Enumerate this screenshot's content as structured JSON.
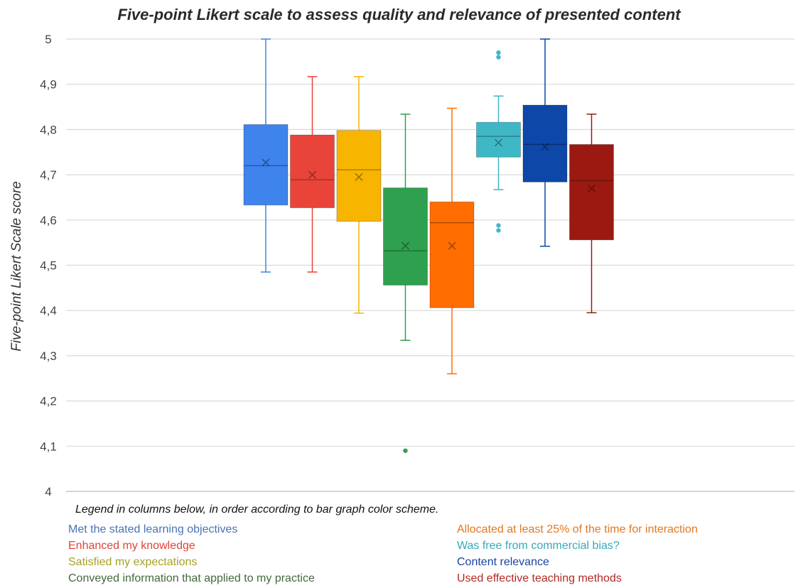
{
  "chart_data": {
    "type": "box",
    "title": "Five-point Likert scale to assess quality and relevance of presented content",
    "ylabel": "Five-point Likert Scale score",
    "xlabel": "",
    "ylim": [
      4,
      5
    ],
    "yticks": [
      "4",
      "4,1",
      "4,2",
      "4,3",
      "4,4",
      "4,5",
      "4,6",
      "4,7",
      "4,8",
      "4,9",
      "5"
    ],
    "grid": true,
    "legend_caption": "Legend in columns below, in order according to bar graph color scheme.",
    "series": [
      {
        "name": "Met the stated learning objectives",
        "color": "#3f83ec",
        "min": 4.485,
        "q1": 4.633,
        "median": 4.72,
        "q3": 4.811,
        "max": 5.0,
        "mean": 4.727,
        "outliers": []
      },
      {
        "name": "Enhanced my knowledge",
        "color": "#e8443a",
        "min": 4.485,
        "q1": 4.627,
        "median": 4.689,
        "q3": 4.788,
        "max": 4.917,
        "mean": 4.7,
        "outliers": []
      },
      {
        "name": "Satisfied my expectations",
        "color": "#f7b500",
        "min": 4.394,
        "q1": 4.597,
        "median": 4.711,
        "q3": 4.798,
        "max": 4.917,
        "mean": 4.695,
        "outliers": []
      },
      {
        "name": "Conveyed information that applied to my practice",
        "color": "#2ea04f",
        "min": 4.334,
        "q1": 4.456,
        "median": 4.532,
        "q3": 4.671,
        "max": 4.834,
        "mean": 4.543,
        "outliers": [
          4.09
        ]
      },
      {
        "name": "Allocated at least 25% of the time for interaction",
        "color": "#ff6d00",
        "min": 4.26,
        "q1": 4.406,
        "median": 4.594,
        "q3": 4.64,
        "max": 4.847,
        "mean": 4.543,
        "outliers": []
      },
      {
        "name": "Was free from commercial bias?",
        "color": "#3fb8c6",
        "min": 4.667,
        "q1": 4.739,
        "median": 4.785,
        "q3": 4.816,
        "max": 4.874,
        "mean": 4.771,
        "outliers": [
          4.97,
          4.96,
          4.588,
          4.577
        ]
      },
      {
        "name": "Content relevance",
        "color": "#0d47a8",
        "min": 4.542,
        "q1": 4.684,
        "median": 4.767,
        "q3": 4.854,
        "max": 5.0,
        "mean": 4.762,
        "outliers": []
      },
      {
        "name": "Used effective teaching methods",
        "color": "#9b1911",
        "min": 4.395,
        "q1": 4.556,
        "median": 4.687,
        "q3": 4.767,
        "max": 4.834,
        "mean": 4.67,
        "outliers": []
      }
    ],
    "legend_text_colors": [
      "#4a72b4",
      "#e0433a",
      "#a6a226",
      "#45683f",
      "#e17820",
      "#35aab8",
      "#1b44a0",
      "#b32a24"
    ]
  }
}
